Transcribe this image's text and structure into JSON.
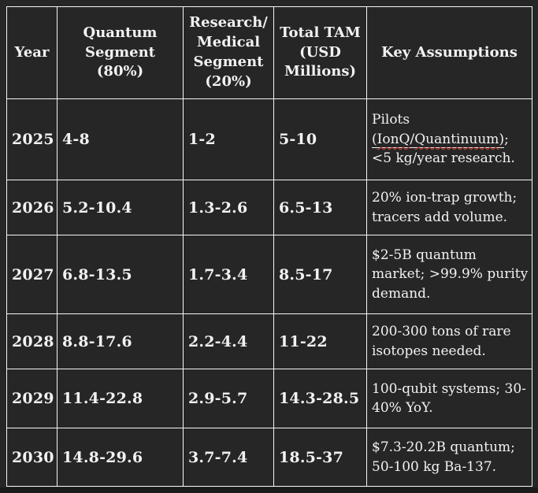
{
  "colors": {
    "page_background": "#1b1b1b",
    "cell_background": "#262626",
    "text": "#f2f2f2",
    "border": "#f6f6f6",
    "spellcheck_squiggle": "#d23b2e"
  },
  "table": {
    "columns": [
      {
        "label": "Year"
      },
      {
        "label": "Quantum\nSegment\n(80%)"
      },
      {
        "label": "Research/\nMedical\nSegment\n(20%)"
      },
      {
        "label": "Total TAM\n(USD\nMillions)"
      },
      {
        "label": "Key Assumptions"
      }
    ],
    "rows": [
      {
        "year": "2025",
        "quantum": "4-8",
        "research": "1-2",
        "total": "5-10",
        "assumption": [
          {
            "t": "Pilots\n"
          },
          {
            "t": "(",
            "u": true
          },
          {
            "t": "IonQ",
            "u": true,
            "sq": true
          },
          {
            "t": "/",
            "u": true
          },
          {
            "t": "Quantinuum",
            "u": true,
            "sq": true
          },
          {
            "t": ")",
            "u": true
          },
          {
            "t": ";\n<5 kg/year research."
          }
        ]
      },
      {
        "year": "2026",
        "quantum": "5.2-10.4",
        "research": "1.3-2.6",
        "total": "6.5-13",
        "assumption": [
          {
            "t": "20% ion-trap growth;\ntracers add volume."
          }
        ]
      },
      {
        "year": "2027",
        "quantum": "6.8-13.5",
        "research": "1.7-3.4",
        "total": "8.5-17",
        "assumption": [
          {
            "t": "$2-5B quantum\nmarket; >99.9% purity\ndemand."
          }
        ]
      },
      {
        "year": "2028",
        "quantum": "8.8-17.6",
        "research": "2.2-4.4",
        "total": "11-22",
        "assumption": [
          {
            "t": "200-300 tons of rare\nisotopes needed."
          }
        ]
      },
      {
        "year": "2029",
        "quantum": "11.4-22.8",
        "research": "2.9-5.7",
        "total": "14.3-28.5",
        "assumption": [
          {
            "t": "100-qubit systems; 30-\n40% YoY."
          }
        ]
      },
      {
        "year": "2030",
        "quantum": "14.8-29.6",
        "research": "3.7-7.4",
        "total": "18.5-37",
        "assumption": [
          {
            "t": "$7.3-20.2B quantum;\n50-100 kg Ba-137."
          }
        ]
      }
    ]
  }
}
